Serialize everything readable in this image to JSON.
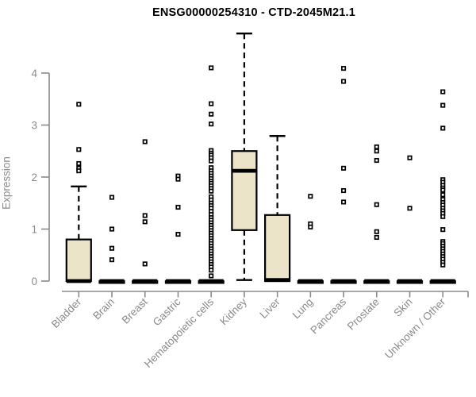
{
  "colors": {
    "box_fill": "#ebe4c9",
    "box_stroke": "#000000",
    "median": "#000000",
    "whisker": "#000000",
    "outlier_stroke": "#000000",
    "outlier_fill": "#ffffff",
    "axis": "#8b8b8b",
    "tick_text": "#8b8b8b",
    "title_text": "#000000"
  },
  "chart_data": {
    "type": "boxplot",
    "title": "ENSG00000254310 - CTD-2045M21.1",
    "ylabel": "Expression",
    "xlabel": "",
    "grid": false,
    "legend": null,
    "ylim": [
      0,
      4.85
    ],
    "yticks": [
      0,
      1,
      2,
      3,
      4
    ],
    "categories": [
      "Bladder",
      "Brain",
      "Breast",
      "Gastric",
      "Hematopoietic cells",
      "Kidney",
      "Liver",
      "Lung",
      "Pancreas",
      "Prostate",
      "Skin",
      "Unknown / Other"
    ],
    "series": [
      {
        "label": "Bladder",
        "q1": 0,
        "median": 0,
        "q3": 0.8,
        "whisker_low": 0,
        "whisker_high": 1.82,
        "outliers": [
          3.4,
          2.53,
          2.26,
          2.17,
          2.12
        ]
      },
      {
        "label": "Brain",
        "q1": 0,
        "median": 0,
        "q3": 0,
        "whisker_low": 0,
        "whisker_high": 0,
        "outliers": [
          1.61,
          1.0,
          0.63,
          0.41
        ]
      },
      {
        "label": "Breast",
        "q1": 0,
        "median": 0,
        "q3": 0,
        "whisker_low": 0,
        "whisker_high": 0,
        "outliers": [
          2.68,
          1.26,
          1.14,
          0.33
        ]
      },
      {
        "label": "Gastric",
        "q1": 0,
        "median": 0,
        "q3": 0,
        "whisker_low": 0,
        "whisker_high": 0,
        "outliers": [
          2.02,
          1.96,
          1.42,
          0.9
        ]
      },
      {
        "label": "Hematopoietic cells",
        "q1": 0,
        "median": 0,
        "q3": 0,
        "whisker_low": 0,
        "whisker_high": 0,
        "outliers": [
          4.1,
          3.41,
          3.21,
          3.02,
          2.51,
          2.46,
          2.42,
          2.37,
          2.31,
          2.18,
          2.12,
          2.07,
          2.02,
          1.97,
          1.92,
          1.88,
          1.83,
          1.78,
          1.73,
          1.62,
          1.56,
          1.5,
          1.45,
          1.4,
          1.34,
          1.28,
          1.22,
          1.17,
          1.12,
          1.07,
          1.02,
          0.97,
          0.92,
          0.87,
          0.82,
          0.77,
          0.72,
          0.67,
          0.62,
          0.57,
          0.52,
          0.47,
          0.42,
          0.37,
          0.32,
          0.27,
          0.21,
          0.1
        ]
      },
      {
        "label": "Kidney",
        "q1": 0.98,
        "median": 2.12,
        "q3": 2.5,
        "whisker_low": 0.02,
        "whisker_high": 4.76,
        "outliers": []
      },
      {
        "label": "Liver",
        "q1": 0,
        "median": 0.02,
        "q3": 1.27,
        "whisker_low": 0,
        "whisker_high": 2.79,
        "outliers": []
      },
      {
        "label": "Lung",
        "q1": 0,
        "median": 0,
        "q3": 0,
        "whisker_low": 0,
        "whisker_high": 0,
        "outliers": [
          1.63,
          1.1,
          1.04
        ]
      },
      {
        "label": "Pancreas",
        "q1": 0,
        "median": 0,
        "q3": 0,
        "whisker_low": 0,
        "whisker_high": 0,
        "outliers": [
          4.09,
          3.84,
          2.17,
          1.74,
          1.52
        ]
      },
      {
        "label": "Prostate",
        "q1": 0,
        "median": 0,
        "q3": 0,
        "whisker_low": 0,
        "whisker_high": 0,
        "outliers": [
          2.58,
          2.5,
          2.32,
          1.47,
          0.95,
          0.84
        ]
      },
      {
        "label": "Skin",
        "q1": 0,
        "median": 0,
        "q3": 0,
        "whisker_low": 0,
        "whisker_high": 0,
        "outliers": [
          2.37,
          1.4
        ]
      },
      {
        "label": "Unknown / Other",
        "q1": 0,
        "median": 0,
        "q3": 0,
        "whisker_low": 0,
        "whisker_high": 0,
        "outliers": [
          3.64,
          3.38,
          2.94,
          1.95,
          1.9,
          1.84,
          1.79,
          1.75,
          1.66,
          1.57,
          1.51,
          1.46,
          1.4,
          1.35,
          1.3,
          1.24,
          0.99,
          0.76,
          0.72,
          0.67,
          0.62,
          0.57,
          0.52,
          0.47,
          0.42,
          0.36,
          0.31
        ]
      }
    ]
  }
}
